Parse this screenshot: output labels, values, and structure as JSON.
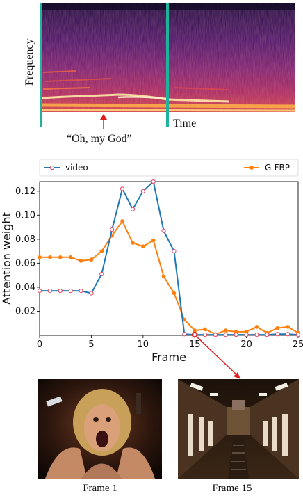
{
  "spectrogram": {
    "ylabel": "Frequency",
    "xlabel": "Time",
    "annotation": "“Oh, my God”"
  },
  "chart_data": {
    "type": "line",
    "xlabel": "Frame",
    "ylabel": "Attention weight",
    "xlim": [
      0,
      25
    ],
    "ylim": [
      0,
      0.128
    ],
    "xticks": [
      "0",
      "5",
      "10",
      "15",
      "20",
      "25"
    ],
    "yticks": [
      "0.02",
      "0.04",
      "0.06",
      "0.08",
      "0.10",
      "0.12"
    ],
    "legend_position": "top",
    "grid": false,
    "series": [
      {
        "name": "video",
        "color": "#1f77b4",
        "marker": "open-circle",
        "x": [
          0,
          1,
          2,
          3,
          4,
          5,
          6,
          7,
          8,
          9,
          10,
          11,
          12,
          13,
          14,
          15,
          16,
          17,
          18,
          19,
          20,
          21,
          22,
          23,
          24,
          25
        ],
        "y": [
          0.037,
          0.037,
          0.037,
          0.037,
          0.037,
          0.035,
          0.051,
          0.088,
          0.122,
          0.105,
          0.12,
          0.128,
          0.087,
          0.07,
          0.001,
          0.0005,
          0.0005,
          0.0005,
          0.0005,
          0.0005,
          0.0005,
          0.0005,
          0.0005,
          0.001,
          0.001,
          0.0005
        ]
      },
      {
        "name": "G-FBP",
        "color": "#ff7f0e",
        "marker": "filled-circle",
        "x": [
          0,
          1,
          2,
          3,
          4,
          5,
          6,
          7,
          8,
          9,
          10,
          11,
          12,
          13,
          14,
          15,
          16,
          17,
          18,
          19,
          20,
          21,
          22,
          23,
          24,
          25
        ],
        "y": [
          0.065,
          0.065,
          0.065,
          0.065,
          0.062,
          0.063,
          0.07,
          0.083,
          0.095,
          0.077,
          0.074,
          0.079,
          0.049,
          0.035,
          0.013,
          0.004,
          0.005,
          0.001,
          0.004,
          0.003,
          0.003,
          0.007,
          0.002,
          0.006,
          0.007,
          0.002
        ]
      }
    ],
    "highlight": {
      "x": 15
    }
  },
  "frames": [
    {
      "caption": "Frame 1",
      "icon": "screaming-woman-image"
    },
    {
      "caption": "Frame 15",
      "icon": "corridor-image"
    }
  ],
  "colors": {
    "marker_line": "#1fb39b",
    "arrow": "#e31a1c"
  }
}
